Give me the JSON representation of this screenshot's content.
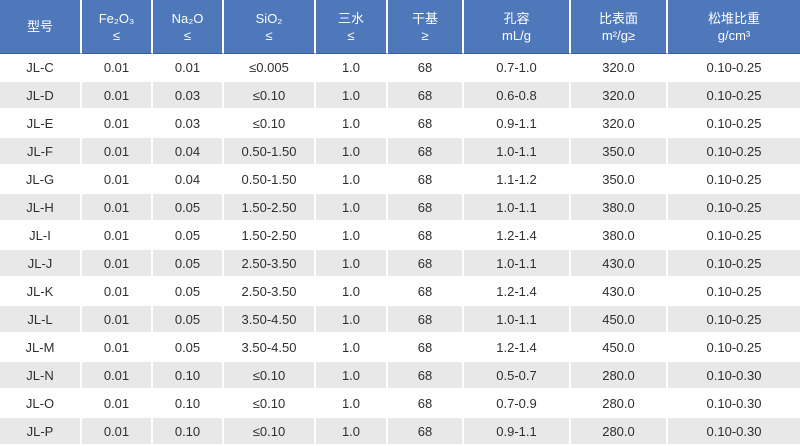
{
  "colors": {
    "header_bg": "#4e78ba",
    "header_text": "#ffffff",
    "header_border_bottom": "#3b5b94",
    "row_bg": "#ffffff",
    "row_alt_bg": "#e8e8e8",
    "body_text": "#2f2f2f",
    "divider": "#ffffff"
  },
  "chart_data": {
    "type": "table",
    "title": "",
    "columns": [
      {
        "line1": "型号",
        "line2": ""
      },
      {
        "line1": "Fe₂O₃",
        "line2": "≤"
      },
      {
        "line1": "Na₂O",
        "line2": "≤"
      },
      {
        "line1": "SiO₂",
        "line2": "≤"
      },
      {
        "line1": "三水",
        "line2": "≤"
      },
      {
        "line1": "干基",
        "line2": "≥"
      },
      {
        "line1": "孔容",
        "line2": "mL/g"
      },
      {
        "line1": "比表面",
        "line2": "m²/g≥"
      },
      {
        "line1": "松堆比重",
        "line2": "g/cm³"
      }
    ],
    "rows": [
      [
        "JL-C",
        "0.01",
        "0.01",
        "≤0.005",
        "1.0",
        "68",
        "0.7-1.0",
        "320.0",
        "0.10-0.25"
      ],
      [
        "JL-D",
        "0.01",
        "0.03",
        "≤0.10",
        "1.0",
        "68",
        "0.6-0.8",
        "320.0",
        "0.10-0.25"
      ],
      [
        "JL-E",
        "0.01",
        "0.03",
        "≤0.10",
        "1.0",
        "68",
        "0.9-1.1",
        "320.0",
        "0.10-0.25"
      ],
      [
        "JL-F",
        "0.01",
        "0.04",
        "0.50-1.50",
        "1.0",
        "68",
        "1.0-1.1",
        "350.0",
        "0.10-0.25"
      ],
      [
        "JL-G",
        "0.01",
        "0.04",
        "0.50-1.50",
        "1.0",
        "68",
        "1.1-1.2",
        "350.0",
        "0.10-0.25"
      ],
      [
        "JL-H",
        "0.01",
        "0.05",
        "1.50-2.50",
        "1.0",
        "68",
        "1.0-1.1",
        "380.0",
        "0.10-0.25"
      ],
      [
        "JL-I",
        "0.01",
        "0.05",
        "1.50-2.50",
        "1.0",
        "68",
        "1.2-1.4",
        "380.0",
        "0.10-0.25"
      ],
      [
        "JL-J",
        "0.01",
        "0.05",
        "2.50-3.50",
        "1.0",
        "68",
        "1.0-1.1",
        "430.0",
        "0.10-0.25"
      ],
      [
        "JL-K",
        "0.01",
        "0.05",
        "2.50-3.50",
        "1.0",
        "68",
        "1.2-1.4",
        "430.0",
        "0.10-0.25"
      ],
      [
        "JL-L",
        "0.01",
        "0.05",
        "3.50-4.50",
        "1.0",
        "68",
        "1.0-1.1",
        "450.0",
        "0.10-0.25"
      ],
      [
        "JL-M",
        "0.01",
        "0.05",
        "3.50-4.50",
        "1.0",
        "68",
        "1.2-1.4",
        "450.0",
        "0.10-0.25"
      ],
      [
        "JL-N",
        "0.01",
        "0.10",
        "≤0.10",
        "1.0",
        "68",
        "0.5-0.7",
        "280.0",
        "0.10-0.30"
      ],
      [
        "JL-O",
        "0.01",
        "0.10",
        "≤0.10",
        "1.0",
        "68",
        "0.7-0.9",
        "280.0",
        "0.10-0.30"
      ],
      [
        "JL-P",
        "0.01",
        "0.10",
        "≤0.10",
        "1.0",
        "68",
        "0.9-1.1",
        "280.0",
        "0.10-0.30"
      ]
    ]
  }
}
